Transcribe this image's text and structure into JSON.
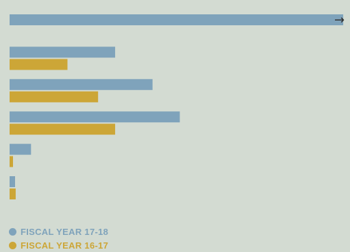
{
  "chart_data": {
    "type": "bar",
    "orientation": "horizontal",
    "categories": [
      "",
      "",
      "",
      "",
      "",
      ""
    ],
    "series": [
      {
        "name": "FISCAL YEAR 17-18",
        "color": "#7fa3bb",
        "values": [
          98,
          31,
          42,
          50,
          6.3,
          1.6
        ],
        "truncated": [
          true,
          false,
          false,
          false,
          false,
          false
        ]
      },
      {
        "name": "FISCAL YEAR 16-17",
        "color": "#cca637",
        "values": [
          null,
          17,
          26,
          31,
          1,
          1.8
        ]
      }
    ],
    "xlim": [
      0,
      100
    ],
    "grid": false,
    "legend_position": "bottom-left",
    "overflow_marker": "→"
  }
}
